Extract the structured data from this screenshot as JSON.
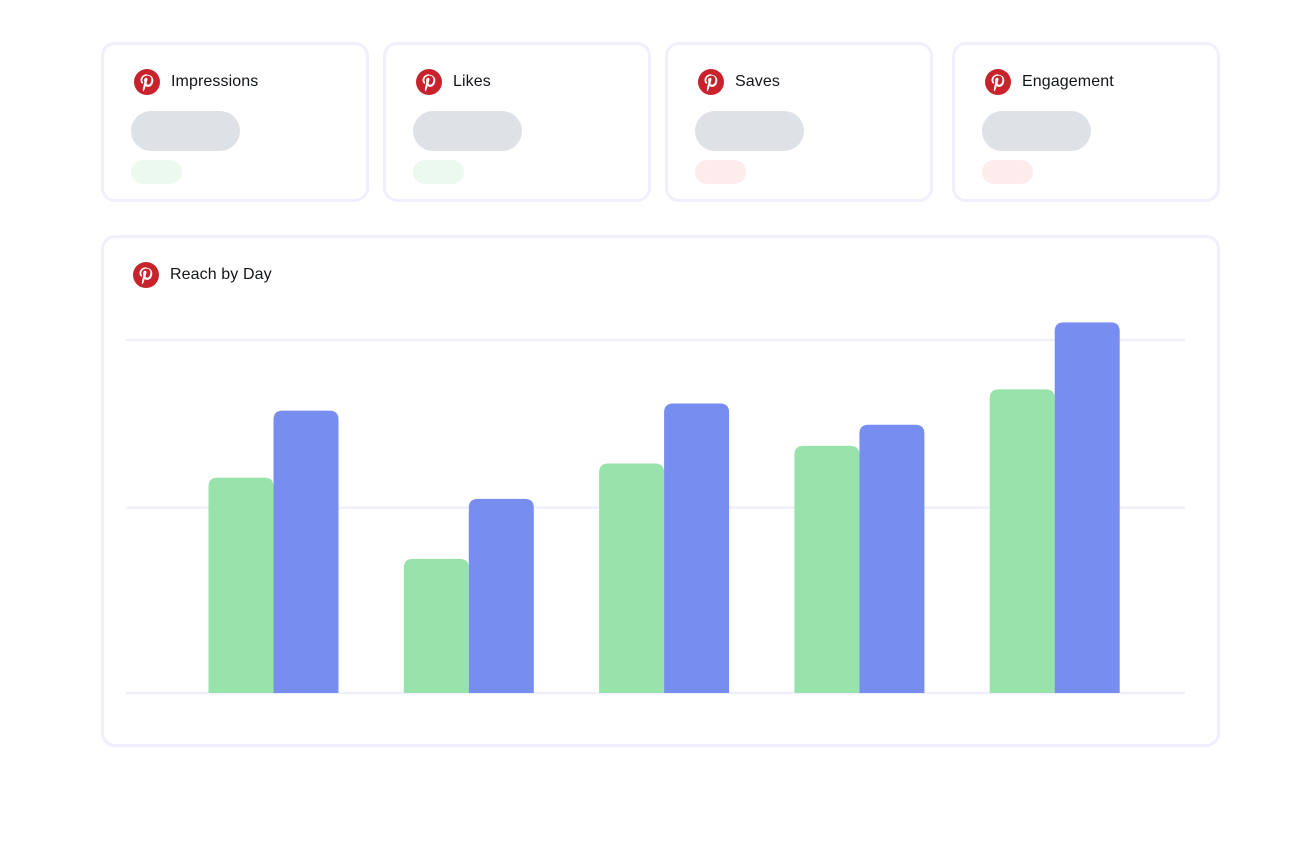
{
  "metrics": [
    {
      "label": "Impressions",
      "icon": "pinterest-icon",
      "trend": "up"
    },
    {
      "label": "Likes",
      "icon": "pinterest-icon",
      "trend": "up"
    },
    {
      "label": "Saves",
      "icon": "pinterest-icon",
      "trend": "down"
    },
    {
      "label": "Engagement",
      "icon": "pinterest-icon",
      "trend": "down"
    }
  ],
  "chart": {
    "title": "Reach by Day",
    "icon": "pinterest-icon"
  },
  "colors": {
    "brand": "#c8232c",
    "series_green": "#98e3ab",
    "series_blue": "#778ef0",
    "grid": "#eff0fb",
    "card_border": "#eff0fb",
    "skeleton": "#dee2e7",
    "delta_up": "#ebf9ee",
    "delta_down": "#feebec"
  },
  "chart_data": {
    "type": "bar",
    "categories": [
      "",
      "",
      "",
      "",
      ""
    ],
    "series": [
      {
        "values": [
          61,
          38,
          65,
          70,
          86
        ]
      },
      {
        "values": [
          80,
          55,
          82,
          76,
          105
        ]
      }
    ],
    "ylim": [
      0,
      100
    ],
    "grid": true,
    "gridlines": [
      0,
      52.5,
      100
    ]
  }
}
